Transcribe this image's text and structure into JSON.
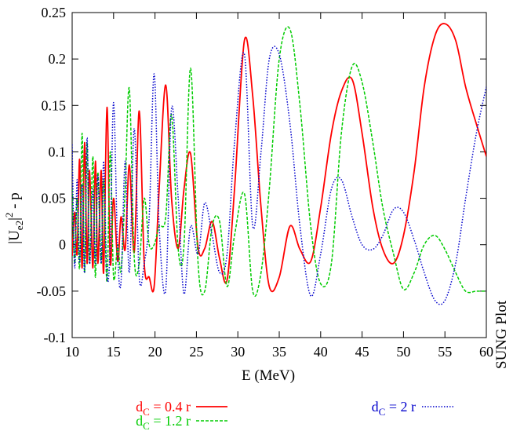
{
  "chart_data": {
    "type": "line",
    "xlabel": "E (MeV)",
    "ylabel": {
      "base": "|U",
      "sub": "e2",
      "rest": "|",
      "sup": "2",
      "tail": " - p"
    },
    "xlim": [
      10,
      60
    ],
    "ylim": [
      -0.1,
      0.25
    ],
    "xticks": [
      "10",
      "15",
      "20",
      "25",
      "30",
      "35",
      "40",
      "45",
      "50",
      "55",
      "60"
    ],
    "yticks": [
      "-0.1",
      "-0.05",
      "0",
      "0.05",
      "0.1",
      "0.15",
      "0.2",
      "0.25"
    ],
    "grid": false,
    "legend_position": "bottom",
    "side_text": "SUNG Plot",
    "series": [
      {
        "name": {
          "pre": "d",
          "sub": "C",
          "post": " = 0.4 r"
        },
        "color": "#ff0000",
        "style": "solid",
        "x": [
          10,
          10.3,
          10.6,
          10.9,
          11.2,
          11.5,
          11.8,
          12.1,
          12.5,
          12.8,
          13.1,
          13.5,
          13.8,
          14.2,
          14.6,
          15.0,
          15.5,
          15.9,
          16.4,
          16.9,
          17.5,
          18.1,
          18.7,
          19.3,
          19.9,
          20.5,
          21.3,
          22.0,
          22.8,
          23.5,
          24.3,
          25.2,
          26.0,
          26.9,
          27.8,
          28.7,
          29.6,
          30.8,
          31.8,
          32.8,
          33.8,
          35.0,
          36.3,
          37.5,
          38.8,
          40.0,
          41.3,
          42.5,
          43.8,
          45.0,
          46.3,
          47.5,
          48.8,
          50.0,
          51.3,
          52.5,
          53.8,
          55.0,
          56.3,
          57.5,
          58.8,
          60.0
        ],
        "y": [
          -0.012,
          0.035,
          -0.01,
          0.092,
          -0.025,
          0.11,
          -0.02,
          0.08,
          -0.025,
          0.09,
          -0.02,
          0.08,
          -0.03,
          0.148,
          -0.02,
          0.05,
          -0.018,
          0.03,
          -0.005,
          0.086,
          -0.008,
          0.144,
          -0.02,
          -0.035,
          -0.045,
          0.06,
          0.172,
          0.05,
          -0.004,
          0.06,
          0.098,
          -0.003,
          -0.004,
          0.025,
          -0.015,
          -0.038,
          0.06,
          0.22,
          0.16,
          0.04,
          -0.045,
          -0.035,
          0.02,
          -0.005,
          -0.018,
          0.04,
          0.12,
          0.165,
          0.178,
          0.12,
          0.04,
          -0.005,
          -0.02,
          0.01,
          0.08,
          0.17,
          0.225,
          0.238,
          0.22,
          0.17,
          0.13,
          0.095
        ]
      },
      {
        "name": {
          "pre": "d",
          "sub": "C",
          "post": " = 1.2 r"
        },
        "color": "#00cc00",
        "style": "dashed",
        "x": [
          10,
          10.3,
          10.6,
          10.9,
          11.2,
          11.5,
          11.8,
          12.1,
          12.5,
          12.8,
          13.1,
          13.5,
          13.8,
          14.2,
          14.6,
          15.0,
          15.5,
          15.9,
          16.4,
          16.9,
          17.5,
          18.1,
          18.7,
          19.3,
          19.9,
          20.5,
          21.3,
          22.0,
          22.8,
          23.5,
          24.3,
          25.2,
          26.0,
          26.9,
          27.8,
          28.7,
          29.6,
          30.8,
          31.8,
          32.8,
          33.8,
          35.0,
          36.3,
          37.5,
          38.8,
          40.0,
          41.3,
          42.5,
          43.8,
          45.0,
          46.3,
          47.5,
          48.8,
          50.0,
          51.3,
          52.5,
          53.8,
          55.0,
          56.3,
          57.5,
          58.8,
          60.0
        ],
        "y": [
          0.06,
          -0.02,
          0.05,
          -0.025,
          0.12,
          -0.03,
          0.11,
          -0.02,
          0.095,
          -0.035,
          0.078,
          -0.02,
          0.07,
          -0.04,
          0.1,
          -0.035,
          0.0,
          -0.028,
          0.06,
          0.168,
          -0.015,
          -0.02,
          0.05,
          0.0,
          0.0,
          0.02,
          0.03,
          0.14,
          -0.005,
          0.0,
          0.19,
          -0.02,
          -0.05,
          0.02,
          0.025,
          -0.045,
          0.01,
          0.055,
          -0.05,
          -0.03,
          0.06,
          0.2,
          0.232,
          0.15,
          0.02,
          -0.042,
          -0.02,
          0.12,
          0.192,
          0.175,
          0.11,
          0.04,
          -0.01,
          -0.048,
          -0.03,
          0.0,
          0.01,
          -0.005,
          -0.03,
          -0.05,
          -0.05,
          -0.05
        ]
      },
      {
        "name": {
          "pre": "d",
          "sub": "C",
          "post": " = 2 r"
        },
        "color": "#0000cc",
        "style": "dotted",
        "x": [
          10,
          10.3,
          10.6,
          10.9,
          11.2,
          11.5,
          11.8,
          12.1,
          12.5,
          12.8,
          13.1,
          13.5,
          13.8,
          14.2,
          14.6,
          15.0,
          15.5,
          15.9,
          16.4,
          16.9,
          17.5,
          18.1,
          18.7,
          19.3,
          19.9,
          20.5,
          21.3,
          22.0,
          22.8,
          23.5,
          24.3,
          25.2,
          26.0,
          26.9,
          27.8,
          28.7,
          29.6,
          30.8,
          31.8,
          32.8,
          33.8,
          35.0,
          36.3,
          37.5,
          38.8,
          40.0,
          41.3,
          42.5,
          43.8,
          45.0,
          46.3,
          47.5,
          48.8,
          50.0,
          51.3,
          52.5,
          53.8,
          55.0,
          56.3,
          57.5,
          58.8,
          60.0
        ],
        "y": [
          0.108,
          -0.025,
          0.07,
          -0.02,
          0.065,
          -0.03,
          0.115,
          -0.02,
          0.06,
          -0.02,
          0.075,
          -0.02,
          0.09,
          -0.035,
          0.0,
          0.153,
          -0.01,
          -0.04,
          0.09,
          -0.03,
          0.125,
          -0.035,
          -0.02,
          0.03,
          0.184,
          0.02,
          -0.048,
          0.147,
          0.05,
          -0.053,
          0.02,
          -0.01,
          0.045,
          0.01,
          -0.03,
          -0.01,
          0.11,
          0.205,
          0.02,
          0.1,
          0.2,
          0.205,
          0.13,
          0.02,
          -0.055,
          -0.01,
          0.06,
          0.07,
          0.03,
          0.0,
          -0.005,
          0.01,
          0.038,
          0.035,
          0.005,
          -0.03,
          -0.06,
          -0.06,
          -0.02,
          0.05,
          0.12,
          0.17
        ]
      }
    ]
  }
}
